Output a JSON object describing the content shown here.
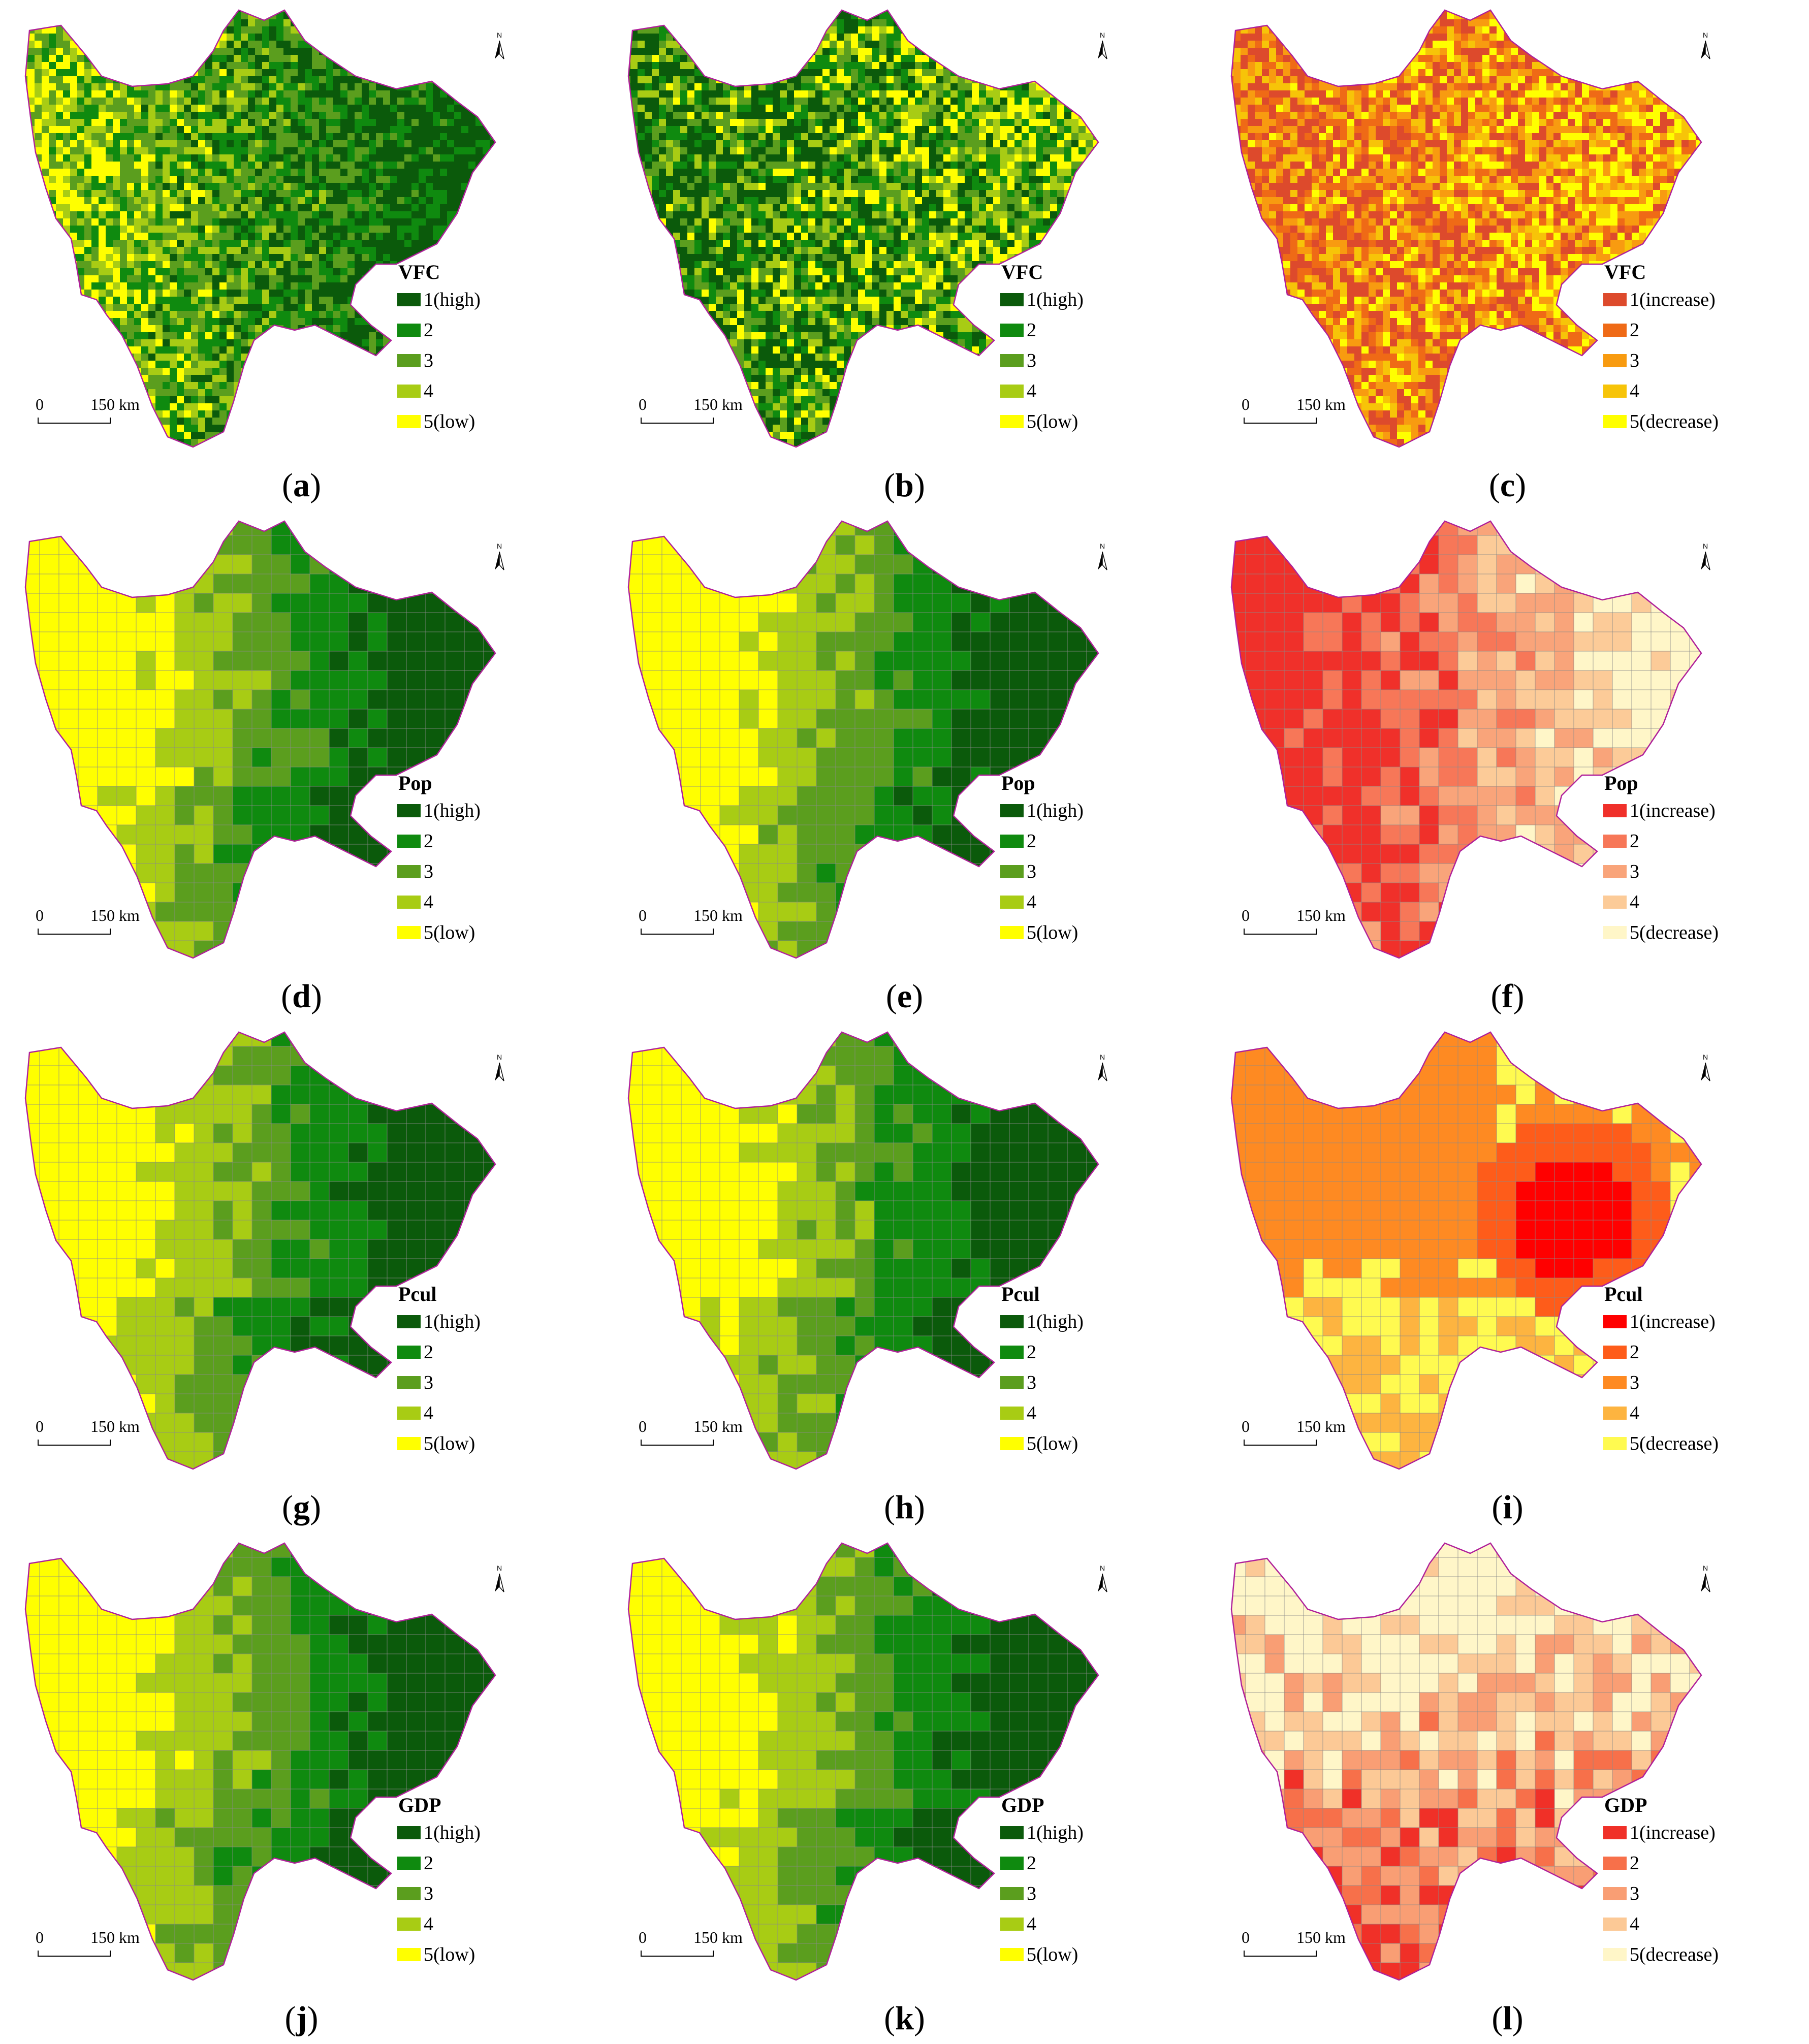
{
  "scale": {
    "zero": "0",
    "distance": "150 km"
  },
  "north_label": "N",
  "palettes": {
    "green": [
      "#0b5a0b",
      "#0f8a0f",
      "#5b9e1e",
      "#a8cc14",
      "#ffff00"
    ],
    "orange": [
      "#dd4a2c",
      "#ef6a16",
      "#f89b10",
      "#f7c408",
      "#ffff00"
    ],
    "red_pop": [
      "#f0302a",
      "#f77758",
      "#f9a47a",
      "#fccb98",
      "#fff6c8"
    ],
    "red_pcul": [
      "#ff0000",
      "#fe5c1a",
      "#fe8a22",
      "#fdb440",
      "#fffa50"
    ],
    "red_gdp": [
      "#f03028",
      "#f7704a",
      "#f99e74",
      "#fcc996",
      "#fff6c8"
    ]
  },
  "panels": [
    {
      "letter": "a",
      "title": "VFC",
      "labels": [
        "1(high)",
        "2",
        "3",
        "4",
        "5(low)"
      ],
      "palette": "green",
      "style": "raster",
      "map": {
        "c1": 0.34,
        "c2": 0.24,
        "c3": 0.18,
        "c4": 0.14,
        "c5": 0.1,
        "east_bias": "high"
      }
    },
    {
      "letter": "b",
      "title": "VFC",
      "labels": [
        "1(high)",
        "2",
        "3",
        "4",
        "5(low)"
      ],
      "palette": "green",
      "style": "raster",
      "map": {
        "c1": 0.3,
        "c2": 0.2,
        "c3": 0.2,
        "c4": 0.16,
        "c5": 0.14,
        "east_bias": "low"
      }
    },
    {
      "letter": "c",
      "title": "VFC",
      "labels": [
        "1(increase)",
        "2",
        "3",
        "4",
        "5(decrease)"
      ],
      "palette": "orange",
      "style": "raster",
      "map": {
        "c1": 0.4,
        "c2": 0.28,
        "c3": 0.14,
        "c4": 0.1,
        "c5": 0.08,
        "east_bias": "low"
      }
    },
    {
      "letter": "d",
      "title": "Pop",
      "labels": [
        "1(high)",
        "2",
        "3",
        "4",
        "5(low)"
      ],
      "palette": "green",
      "style": "gradient",
      "map": {
        "pattern": "west-east"
      }
    },
    {
      "letter": "e",
      "title": "Pop",
      "labels": [
        "1(high)",
        "2",
        "3",
        "4",
        "5(low)"
      ],
      "palette": "green",
      "style": "gradient",
      "map": {
        "pattern": "west-east"
      }
    },
    {
      "letter": "f",
      "title": "Pop",
      "labels": [
        "1(increase)",
        "2",
        "3",
        "4",
        "5(decrease)"
      ],
      "palette": "red_pop",
      "style": "mixed",
      "map": {
        "pattern": "west-high"
      }
    },
    {
      "letter": "g",
      "title": "Pcul",
      "labels": [
        "1(high)",
        "2",
        "3",
        "4",
        "5(low)"
      ],
      "palette": "green",
      "style": "gradient",
      "map": {
        "pattern": "west-east"
      }
    },
    {
      "letter": "h",
      "title": "Pcul",
      "labels": [
        "1(high)",
        "2",
        "3",
        "4",
        "5(low)"
      ],
      "palette": "green",
      "style": "gradient",
      "map": {
        "pattern": "west-east"
      }
    },
    {
      "letter": "i",
      "title": "Pcul",
      "labels": [
        "1(increase)",
        "2",
        "3",
        "4",
        "5(decrease)"
      ],
      "palette": "red_pcul",
      "style": "mixed",
      "map": {
        "pattern": "east-high"
      }
    },
    {
      "letter": "j",
      "title": "GDP",
      "labels": [
        "1(high)",
        "2",
        "3",
        "4",
        "5(low)"
      ],
      "palette": "green",
      "style": "gradient",
      "map": {
        "pattern": "west-east"
      }
    },
    {
      "letter": "k",
      "title": "GDP",
      "labels": [
        "1(high)",
        "2",
        "3",
        "4",
        "5(low)"
      ],
      "palette": "green",
      "style": "gradient",
      "map": {
        "pattern": "west-east"
      }
    },
    {
      "letter": "l",
      "title": "GDP",
      "labels": [
        "1(increase)",
        "2",
        "3",
        "4",
        "5(decrease)"
      ],
      "palette": "red_gdp",
      "style": "mixed",
      "map": {
        "pattern": "south-high"
      }
    }
  ]
}
